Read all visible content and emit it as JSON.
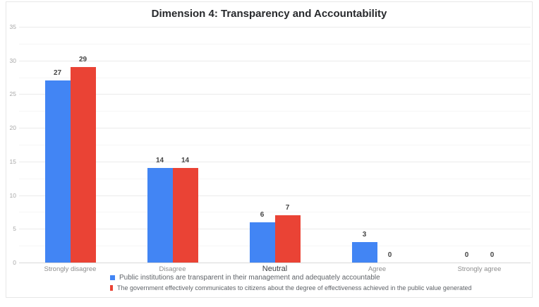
{
  "chart_data": {
    "type": "bar",
    "title": "Dimension 4: Transparency and Accountability",
    "categories": [
      "Strongly disagree",
      "Disagree",
      "Neutral",
      "Agree",
      "Strongly agree"
    ],
    "series": [
      {
        "name": "Public institutions are transparent in their management and adequately accountable",
        "color": "#4285F4",
        "values": [
          27,
          14,
          6,
          3,
          0
        ]
      },
      {
        "name": "The government effectively communicates to citizens about the degree of effectiveness achieved in the public value generated",
        "color": "#EA4335",
        "values": [
          29,
          14,
          7,
          0,
          0
        ]
      }
    ],
    "xlabel": "",
    "ylabel": "",
    "ylim": [
      0,
      35
    ],
    "yticks": [
      0,
      5,
      10,
      15,
      20,
      25,
      30,
      35
    ],
    "ytick_step": 5,
    "grid": true,
    "minor_gridlines": true,
    "value_labels": true,
    "legend_position": "bottom",
    "bold_category_index": 2,
    "frame_border_color": "#e7e7e7",
    "major_grid_color": "#ebebeb",
    "minor_grid_color": "#f6f6f6",
    "axis_line_color": "#d9d9d9"
  }
}
